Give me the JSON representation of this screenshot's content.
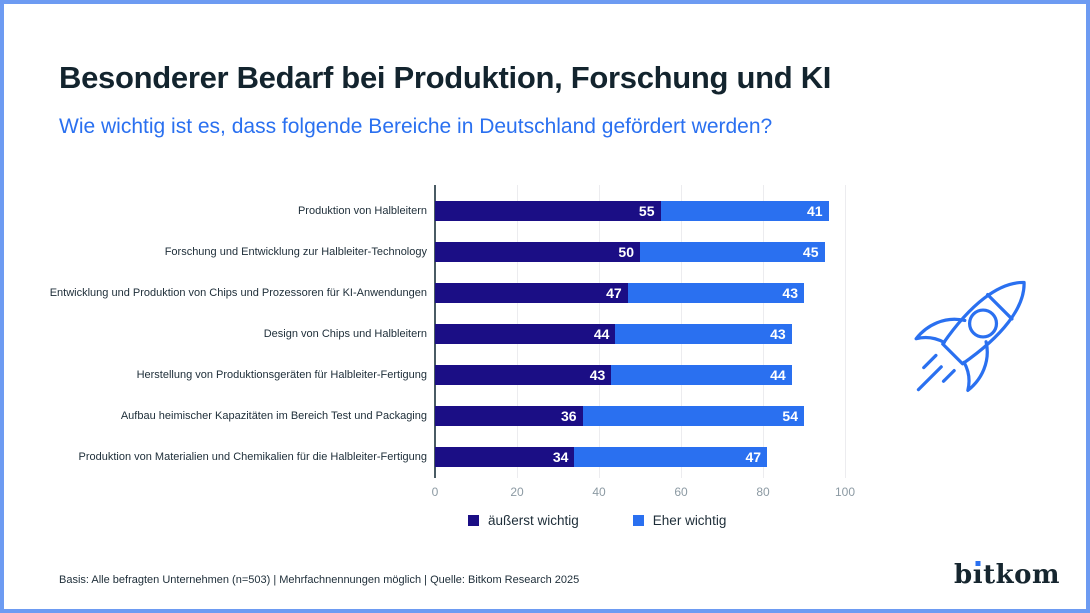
{
  "header": {
    "title": "Besonderer Bedarf bei Produktion, Forschung und KI",
    "subtitle": "Wie wichtig ist es, dass folgende Bereiche in Deutschland gefördert werden?"
  },
  "chart_data": {
    "type": "bar",
    "orientation": "horizontal",
    "stacked": true,
    "categories": [
      "Produktion von Halbleitern",
      "Forschung und Entwicklung zur Halbleiter-Technology",
      "Entwicklung und Produktion von Chips und Prozessoren für KI-Anwendungen",
      "Design von Chips und Halbleitern",
      "Herstellung von Produktionsgeräten für Halbleiter-Fertigung",
      "Aufbau heimischer Kapazitäten im Bereich Test und Packaging",
      "Produktion von Materialien und Chemikalien für die Halbleiter-Fertigung"
    ],
    "series": [
      {
        "name": "äußerst wichtig",
        "color": "#1B0E85",
        "values": [
          55,
          50,
          47,
          44,
          43,
          36,
          34
        ]
      },
      {
        "name": "Eher wichtig",
        "color": "#2A70F0",
        "values": [
          41,
          45,
          43,
          43,
          44,
          54,
          47
        ]
      }
    ],
    "xlim": [
      0,
      100
    ],
    "x_ticks": [
      0,
      20,
      40,
      60,
      80,
      100
    ],
    "grid": true,
    "legend_position": "bottom",
    "value_labels": "inside-end, white bold"
  },
  "footer": {
    "source": "Basis: Alle befragten Unternehmen (n=503) | Mehrfachnennungen möglich | Quelle: Bitkom Research 2025"
  },
  "branding": {
    "logo_pre": "b",
    "logo_i": "ı",
    "logo_post": "tkom",
    "logo_text": "bitkom",
    "accent_blue": "#2A70F0",
    "dark_navy": "#1B0E85",
    "frame_color": "#6D9BF2"
  },
  "icons": {
    "rocket": "rocket-icon"
  }
}
